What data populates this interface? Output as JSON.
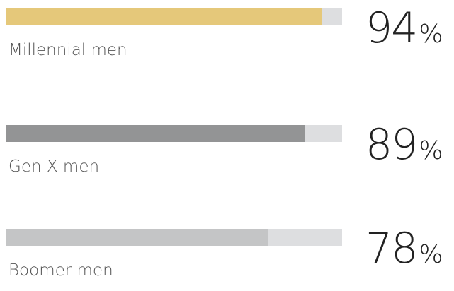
{
  "chart_data": {
    "type": "bar",
    "categories": [
      "Millennial men",
      "Gen X men",
      "Boomer men"
    ],
    "values": [
      94,
      89,
      78
    ],
    "value_suffix": "%",
    "xlim": [
      0,
      100
    ],
    "colors": [
      "#e5c87a",
      "#939495",
      "#c4c5c6"
    ],
    "track_color": "#dddee0",
    "grid": false
  }
}
